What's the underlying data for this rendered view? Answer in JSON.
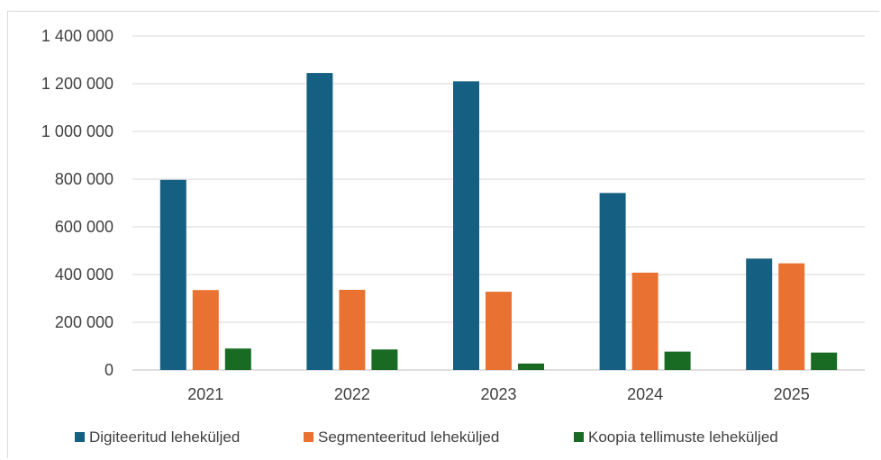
{
  "chart_data": {
    "type": "bar",
    "categories": [
      "2021",
      "2022",
      "2023",
      "2024",
      "2025"
    ],
    "series": [
      {
        "name": "Digiteeritud leheküljed",
        "color": "#156082",
        "values": [
          797000,
          1245000,
          1210000,
          742000,
          467000
        ]
      },
      {
        "name": "Segmenteeritud leheküljed",
        "color": "#E97132",
        "values": [
          335000,
          336000,
          328000,
          408000,
          447000
        ]
      },
      {
        "name": "Koopia tellimuste leheküljed",
        "color": "#196B24",
        "values": [
          90000,
          86000,
          27000,
          77000,
          73000
        ]
      }
    ],
    "ylim": [
      0,
      1400000
    ],
    "yticks": [
      0,
      200000,
      400000,
      600000,
      800000,
      1000000,
      1200000,
      1400000
    ],
    "ytick_labels": [
      "0",
      "200 000",
      "400 000",
      "600 000",
      "800 000",
      "1 000 000",
      "1 200 000",
      "1 400 000"
    ],
    "grid": true,
    "legend": "bottom"
  }
}
